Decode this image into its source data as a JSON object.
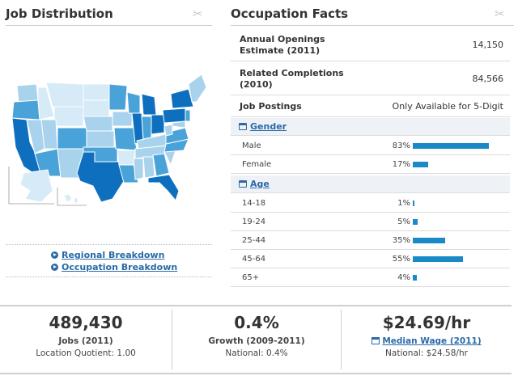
{
  "left": {
    "title": "Job Distribution",
    "links": [
      "Regional Breakdown",
      "Occupation Breakdown"
    ]
  },
  "right": {
    "title": "Occupation Facts",
    "facts": [
      {
        "label_1": "Annual Openings",
        "label_2": "Estimate (2011)",
        "value": "14,150"
      },
      {
        "label_1": "Related Completions",
        "label_2": "(2010)",
        "value": "84,566"
      },
      {
        "label_1": "Job Postings",
        "label_2": "",
        "value": "Only Available for 5-Digit"
      }
    ],
    "gender": {
      "heading": "Gender",
      "rows": [
        {
          "label": "Male",
          "pct_text": "83%",
          "pct": 83
        },
        {
          "label": "Female",
          "pct_text": "17%",
          "pct": 17
        }
      ]
    },
    "age": {
      "heading": "Age",
      "rows": [
        {
          "label": "14-18",
          "pct_text": "1%",
          "pct": 1
        },
        {
          "label": "19-24",
          "pct_text": "5%",
          "pct": 5
        },
        {
          "label": "25-44",
          "pct_text": "35%",
          "pct": 35
        },
        {
          "label": "45-64",
          "pct_text": "55%",
          "pct": 55
        },
        {
          "label": "65+",
          "pct_text": "4%",
          "pct": 4
        }
      ]
    }
  },
  "stats": [
    {
      "value": "489,430",
      "caption": "Jobs (2011)",
      "sub": "Location Quotient: 1.00"
    },
    {
      "value": "0.4%",
      "caption": "Growth (2009-2011)",
      "sub": "National: 0.4%"
    },
    {
      "value": "$24.69/hr",
      "caption": "Median Wage (2011)",
      "sub": "National: $24.58/hr"
    }
  ],
  "colors": {
    "accent": "#2a6aa8",
    "bar": "#1a8ac6",
    "map_dark": "#0f6fbf",
    "map_mid": "#4aa3d8",
    "map_light": "#a9d3ec",
    "map_pale": "#d6ebf7"
  },
  "icons": [
    "scissors-icon",
    "arrow-right-icon",
    "window-icon"
  ]
}
